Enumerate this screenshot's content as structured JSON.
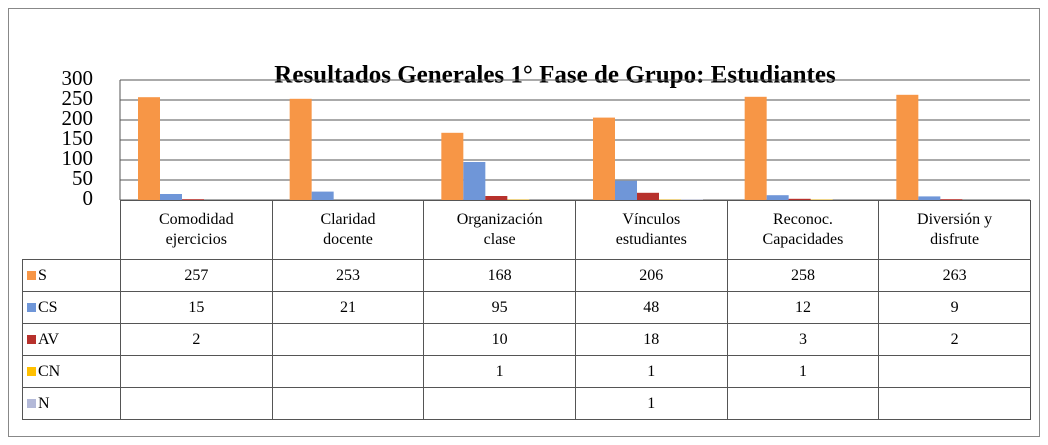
{
  "chart_data": {
    "type": "bar",
    "title": "Resultados Generales 1° Fase de Grupo: Estudiantes",
    "categories": [
      "Comodidad ejercicios",
      "Claridad docente",
      "Organización clase",
      "Vínculos estudiantes",
      "Reconoc. Capacidades",
      "Diversión y disfrute"
    ],
    "series": [
      {
        "name": "S",
        "color": "#f79646",
        "values": [
          257,
          253,
          168,
          206,
          258,
          263
        ]
      },
      {
        "name": "CS",
        "color": "#6f96d8",
        "values": [
          15,
          21,
          95,
          48,
          12,
          9
        ]
      },
      {
        "name": "AV",
        "color": "#b7312c",
        "values": [
          2,
          null,
          10,
          18,
          3,
          2
        ]
      },
      {
        "name": "CN",
        "color": "#ffc000",
        "values": [
          null,
          null,
          1,
          1,
          1,
          null
        ]
      },
      {
        "name": "N",
        "color": "#b3b9d8",
        "values": [
          null,
          null,
          null,
          1,
          null,
          null
        ]
      }
    ],
    "ylim": [
      0,
      300
    ],
    "yticks": [
      0,
      50,
      100,
      150,
      200,
      250,
      300
    ],
    "grid": true,
    "data_table": true
  }
}
